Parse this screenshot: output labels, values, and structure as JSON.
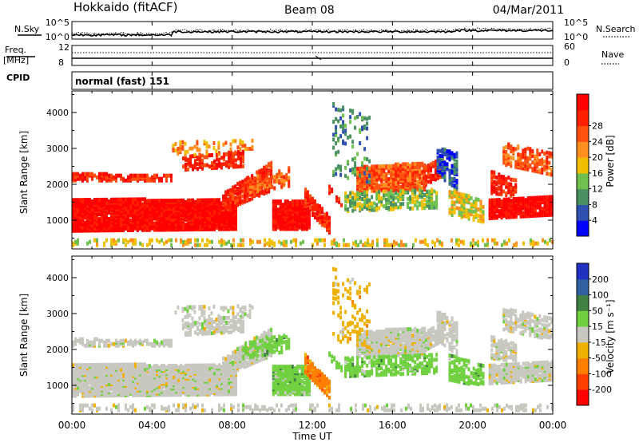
{
  "header": {
    "station": "Hokkaido (fitACF)",
    "beam": "Beam 08",
    "date": "04/Mar/2011"
  },
  "top_strip": {
    "left_label": "N.Sky",
    "right_label": "N.Search",
    "left_ticks": [
      "10^5",
      "10^0"
    ],
    "right_ticks": [
      "10^5",
      "10^0"
    ]
  },
  "freq_strip": {
    "label_line1": "Freq.",
    "label_line2": "[MHz]",
    "left_ticks": [
      "12",
      "8"
    ],
    "right_label": "Nave",
    "right_ticks": [
      "60",
      "0"
    ]
  },
  "cpid": {
    "label": "CPID",
    "value": "normal (fast) 151"
  },
  "colors": {
    "power_scale": [
      "#0000ff",
      "#3050b0",
      "#4a9060",
      "#70c050",
      "#f0c000",
      "#ff9020",
      "#ff5010",
      "#ff2000",
      "#ff0000"
    ],
    "velocity_scale": [
      "#2030c0",
      "#3060a0",
      "#408040",
      "#70d040",
      "#c8c8c0",
      "#f0b000",
      "#ff8000",
      "#ff4000",
      "#ff0000"
    ]
  },
  "chart_data": [
    {
      "type": "heatmap",
      "name": "power",
      "ylabel": "Slant Range [km]",
      "y_ticks": [
        1000,
        2000,
        3000,
        4000
      ],
      "ylim": [
        200,
        4600
      ],
      "x_ticks": [
        "00:00",
        "04:00",
        "08:00",
        "12:00",
        "16:00",
        "20:00",
        "00:00"
      ],
      "xlim_hours": [
        0,
        24
      ],
      "colorbar": {
        "label": "Power [dB]",
        "ticks": [
          "4",
          "8",
          "12",
          "16",
          "20",
          "24",
          "28"
        ]
      }
    },
    {
      "type": "heatmap",
      "name": "velocity",
      "ylabel": "Slant Range [km]",
      "y_ticks": [
        1000,
        2000,
        3000,
        4000
      ],
      "ylim": [
        200,
        4600
      ],
      "x_ticks": [
        "00:00",
        "04:00",
        "08:00",
        "12:00",
        "16:00",
        "20:00",
        "00:00"
      ],
      "xlim_hours": [
        0,
        24
      ],
      "xlabel": "Time UT",
      "colorbar": {
        "label": "Velocity [m s⁻¹]",
        "ticks": [
          "200",
          "100",
          "50",
          "15",
          "-15",
          "-50",
          "-100",
          "-200"
        ]
      }
    }
  ]
}
